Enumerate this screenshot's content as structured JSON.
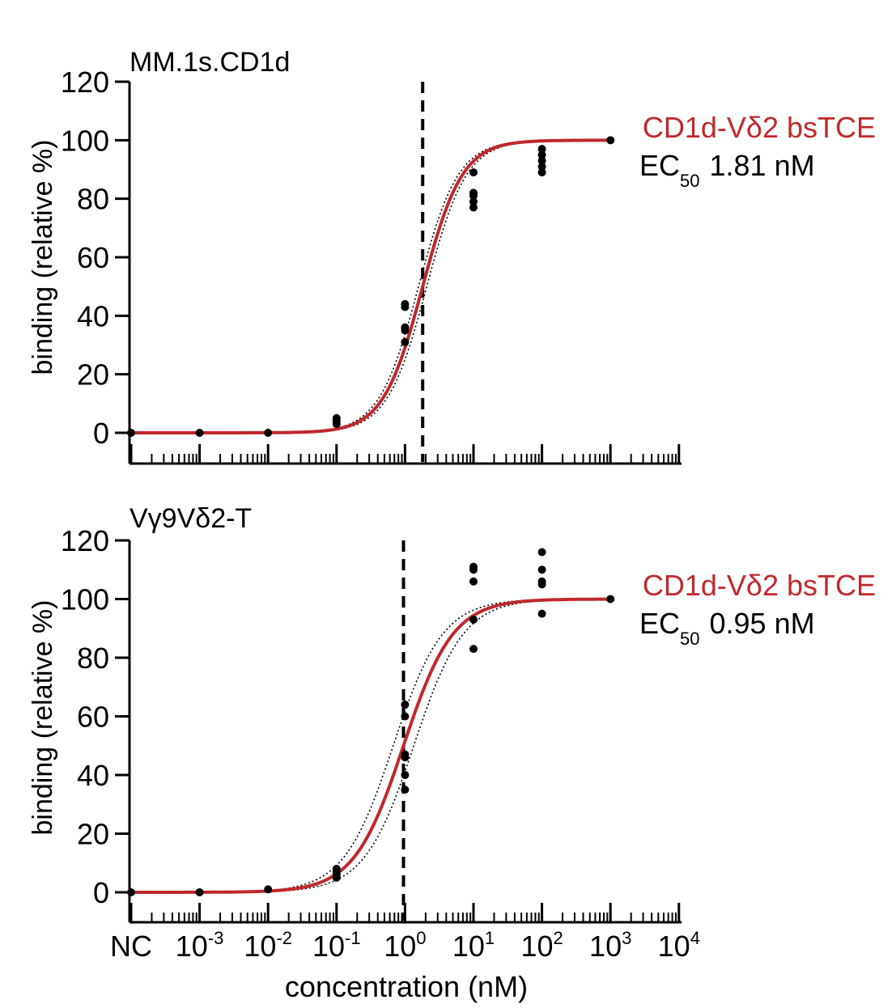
{
  "chart_data": [
    {
      "type": "scatter",
      "title": "MM.1s.CD1d",
      "xlabel": "",
      "ylabel": "binding (relative %)",
      "ylim": [
        0,
        120
      ],
      "y_ticks": [
        "0",
        "20",
        "40",
        "60",
        "80",
        "100",
        "120"
      ],
      "x_scale": "log",
      "x_ticks": [
        "NC",
        "10^-3",
        "10^-2",
        "10^-1",
        "10^0",
        "10^1",
        "10^2",
        "10^3",
        "10^4"
      ],
      "legend": {
        "series_label": "CD1d-Vδ2 bsTCE",
        "ec50_prefix": "EC",
        "ec50_sub": "50",
        "ec50_value": "1.81 nM"
      },
      "ec50_nM": 1.81,
      "curve": {
        "bottom": 0,
        "top": 100,
        "ec50": 1.81,
        "hill": 1.5,
        "ci_shift": 0.06
      },
      "points": [
        {
          "x": "NC",
          "y": 0
        },
        {
          "x": 0.001,
          "y": 0
        },
        {
          "x": 0.01,
          "y": 0
        },
        {
          "x": 0.1,
          "y": 3
        },
        {
          "x": 0.1,
          "y": 4
        },
        {
          "x": 0.1,
          "y": 5
        },
        {
          "x": 1,
          "y": 31
        },
        {
          "x": 1,
          "y": 35
        },
        {
          "x": 1,
          "y": 36
        },
        {
          "x": 1,
          "y": 43
        },
        {
          "x": 1,
          "y": 44
        },
        {
          "x": 10,
          "y": 77
        },
        {
          "x": 10,
          "y": 79
        },
        {
          "x": 10,
          "y": 81
        },
        {
          "x": 10,
          "y": 82
        },
        {
          "x": 10,
          "y": 89
        },
        {
          "x": 100,
          "y": 89
        },
        {
          "x": 100,
          "y": 91
        },
        {
          "x": 100,
          "y": 93
        },
        {
          "x": 100,
          "y": 95
        },
        {
          "x": 100,
          "y": 97
        },
        {
          "x": 1000,
          "y": 100
        }
      ],
      "colors": {
        "curve": "#c0282d",
        "points": "#000000",
        "ci": "#000000"
      }
    },
    {
      "type": "scatter",
      "title": "Vγ9Vδ2-T",
      "xlabel": "concentration (nM)",
      "ylabel": "binding (relative %)",
      "ylim": [
        0,
        120
      ],
      "y_ticks": [
        "0",
        "20",
        "40",
        "60",
        "80",
        "100",
        "120"
      ],
      "x_scale": "log",
      "x_ticks": [
        "NC",
        "10^-3",
        "10^-2",
        "10^-1",
        "10^0",
        "10^1",
        "10^2",
        "10^3",
        "10^4"
      ],
      "legend": {
        "series_label": "CD1d-Vδ2 bsTCE",
        "ec50_prefix": "EC",
        "ec50_sub": "50",
        "ec50_value": "0.95 nM"
      },
      "ec50_nM": 0.95,
      "curve": {
        "bottom": 0,
        "top": 100,
        "ec50": 0.95,
        "hill": 1.2,
        "ci_shift": 0.15
      },
      "points": [
        {
          "x": "NC",
          "y": 0
        },
        {
          "x": 0.001,
          "y": 0
        },
        {
          "x": 0.01,
          "y": 1
        },
        {
          "x": 0.1,
          "y": 5
        },
        {
          "x": 0.1,
          "y": 6
        },
        {
          "x": 0.1,
          "y": 7
        },
        {
          "x": 0.1,
          "y": 8
        },
        {
          "x": 1,
          "y": 35
        },
        {
          "x": 1,
          "y": 40
        },
        {
          "x": 1,
          "y": 46
        },
        {
          "x": 1,
          "y": 47
        },
        {
          "x": 1,
          "y": 60
        },
        {
          "x": 1,
          "y": 64
        },
        {
          "x": 10,
          "y": 83
        },
        {
          "x": 10,
          "y": 93
        },
        {
          "x": 10,
          "y": 106
        },
        {
          "x": 10,
          "y": 110
        },
        {
          "x": 10,
          "y": 111
        },
        {
          "x": 100,
          "y": 95
        },
        {
          "x": 100,
          "y": 105
        },
        {
          "x": 100,
          "y": 106
        },
        {
          "x": 100,
          "y": 110
        },
        {
          "x": 100,
          "y": 116
        },
        {
          "x": 1000,
          "y": 100
        }
      ],
      "colors": {
        "curve": "#c0282d",
        "points": "#000000",
        "ci": "#000000"
      }
    }
  ]
}
